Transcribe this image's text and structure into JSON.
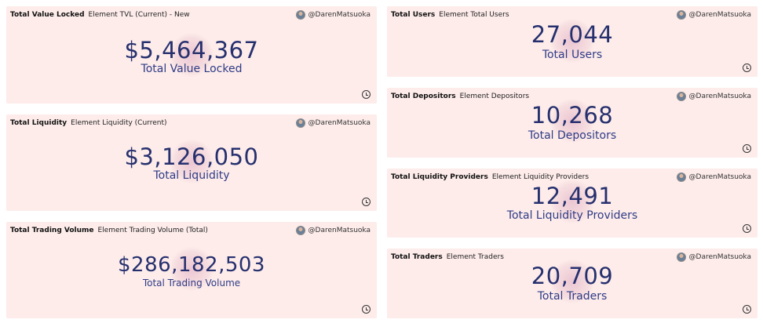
{
  "author": "@DarenMatsuoka",
  "left_cards": [
    {
      "title": "Total Value Locked",
      "subtitle": "Element TVL (Current) - New",
      "value": "$5,464,367",
      "label": "Total Value Locked"
    },
    {
      "title": "Total Liquidity",
      "subtitle": "Element Liquidity (Current)",
      "value": "$3,126,050",
      "label": "Total Liquidity"
    },
    {
      "title": "Total Trading Volume",
      "subtitle": "Element Trading Volume (Total)",
      "value": "$286,182,503",
      "label": "Total Trading Volume"
    }
  ],
  "right_cards": [
    {
      "title": "Total Users",
      "subtitle": "Element Total Users",
      "value": "27,044",
      "label": "Total Users"
    },
    {
      "title": "Total Depositors",
      "subtitle": "Element Depositors",
      "value": "10,268",
      "label": "Total Depositors"
    },
    {
      "title": "Total Liquidity Providers",
      "subtitle": "Element Liquidity Providers",
      "value": "12,491",
      "label": "Total Liquidity Providers"
    },
    {
      "title": "Total Traders",
      "subtitle": "Element Traders",
      "value": "20,709",
      "label": "Total Traders"
    }
  ],
  "colors": {
    "card_background": "#fdecea",
    "value_text": "#26306e",
    "label_text": "#2f3b86"
  },
  "icons": {
    "author": "avatar",
    "refresh": "clock-icon"
  }
}
